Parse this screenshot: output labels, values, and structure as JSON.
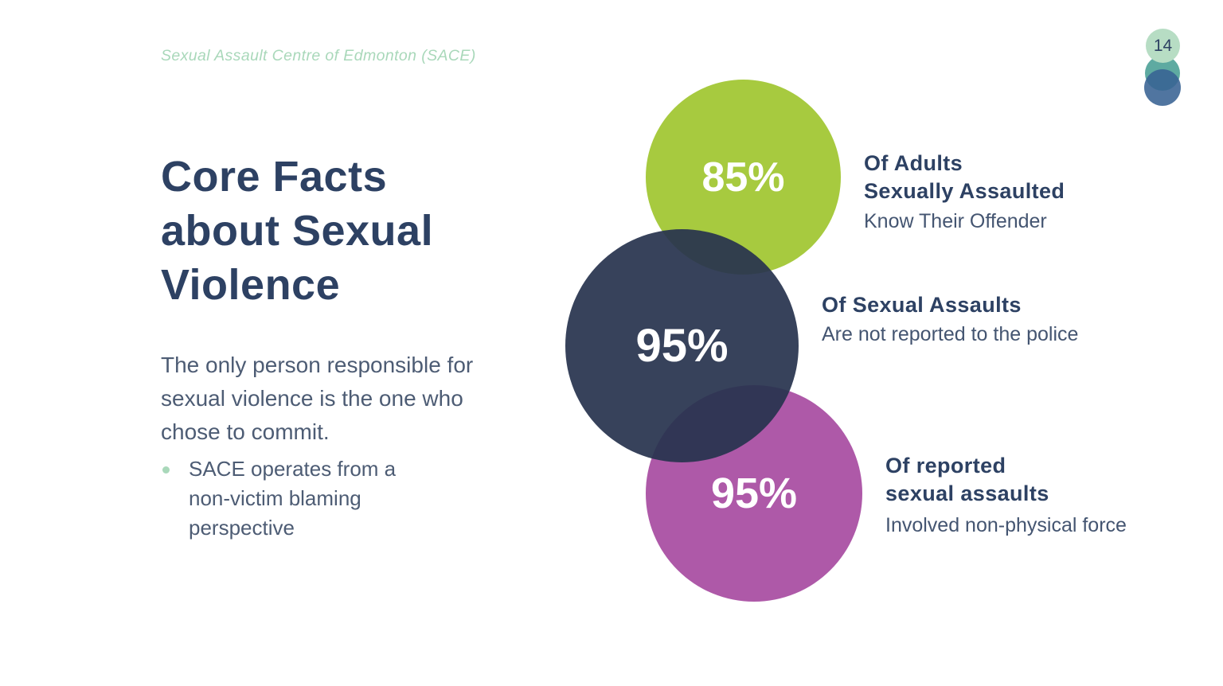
{
  "theme": {
    "background": "#ffffff",
    "title_color": "#2d4163",
    "body_color": "#4d5c74",
    "accent_green": "#a7ca3f",
    "accent_navy": "#28344f",
    "accent_purple": "#ae59a8",
    "pale_green": "#a9d8ba",
    "badge_green": "#b7ddc4",
    "badge_teal": "#489e94",
    "badge_blue": "#386293"
  },
  "header": {
    "organization": "Sexual Assault Centre of Edmonton (SACE)",
    "page_number": "14"
  },
  "main": {
    "title_lines": [
      "Core Facts",
      "about Sexual",
      "Violence"
    ],
    "paragraph": "The only person responsible for sexual violence is the one who chose to commit.",
    "bullets": [
      {
        "text": "SACE operates from a non-victim blaming perspective"
      }
    ]
  },
  "stats": [
    {
      "value": "85%",
      "color": "#a7ca3f",
      "heading_lines": [
        "Of Adults",
        "Sexually Assaulted"
      ],
      "description": "Know Their Offender"
    },
    {
      "value": "95%",
      "color": "#28344f",
      "heading_lines": [
        "Of Sexual Assaults"
      ],
      "description": "Are not reported to the police"
    },
    {
      "value": "95%",
      "color": "#ae59a8",
      "heading_lines": [
        "Of reported",
        "sexual assaults"
      ],
      "description": "Involved non-physical force"
    }
  ]
}
